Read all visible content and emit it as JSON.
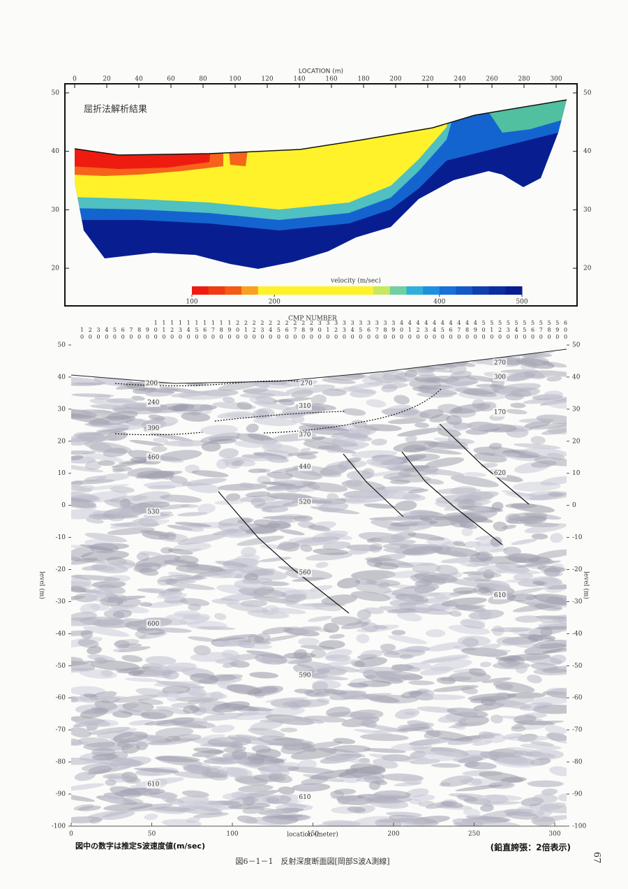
{
  "top_panel": {
    "x_axis_title": "LOCATION (m)",
    "xticks": [
      0,
      20,
      40,
      60,
      80,
      100,
      120,
      140,
      160,
      180,
      200,
      220,
      240,
      260,
      280,
      300
    ],
    "yticks": [
      20,
      30,
      40,
      50
    ],
    "label": "屈折法解析結果",
    "colorbar": {
      "title": "velocity (m/sec)",
      "ticks": [
        100,
        200,
        400,
        500
      ],
      "colors": [
        "#ee1c10",
        "#f03a12",
        "#f55a14",
        "#f9a020",
        "#fff12a",
        "#fff22a",
        "#fff22a",
        "#fff22a",
        "#fff22a",
        "#fff22a",
        "#fff22a",
        "#c8e860",
        "#70d0a0",
        "#30b0d8",
        "#1e90e0",
        "#1870d8",
        "#1458c8",
        "#1040b0",
        "#0c2ea0",
        "#081e90"
      ]
    }
  },
  "bottom_panel": {
    "cmp_title": "CMP NUMBER",
    "cmp_ticks": [
      10,
      20,
      30,
      40,
      50,
      60,
      70,
      80,
      90,
      100,
      110,
      120,
      130,
      140,
      150,
      160,
      170,
      180,
      190,
      200,
      210,
      220,
      230,
      240,
      250,
      260,
      270,
      280,
      290,
      300,
      310,
      320,
      330,
      340,
      350,
      360,
      370,
      380,
      390,
      400,
      410,
      420,
      430,
      440,
      450,
      460,
      470,
      480,
      490,
      500,
      510,
      520,
      530,
      540,
      550,
      560,
      570,
      580,
      590,
      600
    ],
    "yticks": [
      50,
      40,
      30,
      20,
      10,
      0,
      -10,
      -20,
      -30,
      -40,
      -50,
      -60,
      -70,
      -80,
      -90,
      -100
    ],
    "y_axis_title": "level (m)",
    "xticks": [
      0,
      50,
      100,
      150,
      200,
      250,
      300
    ],
    "x_axis_title": "location (meter)",
    "annotations": [
      {
        "value": 200,
        "x": 50,
        "y": 38
      },
      {
        "value": 270,
        "x": 146,
        "y": 38
      },
      {
        "value": 270,
        "x": 266,
        "y": 44.5
      },
      {
        "value": 300,
        "x": 266,
        "y": 40
      },
      {
        "value": 240,
        "x": 51,
        "y": 32
      },
      {
        "value": 310,
        "x": 145,
        "y": 31
      },
      {
        "value": 170,
        "x": 266,
        "y": 29
      },
      {
        "value": 390,
        "x": 51,
        "y": 24
      },
      {
        "value": 370,
        "x": 145,
        "y": 22
      },
      {
        "value": 460,
        "x": 51,
        "y": 15
      },
      {
        "value": 440,
        "x": 145,
        "y": 12
      },
      {
        "value": 620,
        "x": 266,
        "y": 10
      },
      {
        "value": 520,
        "x": 145,
        "y": 1
      },
      {
        "value": 530,
        "x": 51,
        "y": -2
      },
      {
        "value": 560,
        "x": 145,
        "y": -21
      },
      {
        "value": 610,
        "x": 266,
        "y": -28
      },
      {
        "value": 600,
        "x": 51,
        "y": -37
      },
      {
        "value": 590,
        "x": 145,
        "y": -53
      },
      {
        "value": 610,
        "x": 51,
        "y": -87
      },
      {
        "value": 610,
        "x": 145,
        "y": -91
      }
    ]
  },
  "note": "図中の数字は推定S波速度値(m/sec)",
  "vertical_exaggeration": "(鉛直誇張：2倍表示)",
  "caption": "図6－1－1　反射深度断面図[岡部S波A測線]",
  "page_number": "67"
}
